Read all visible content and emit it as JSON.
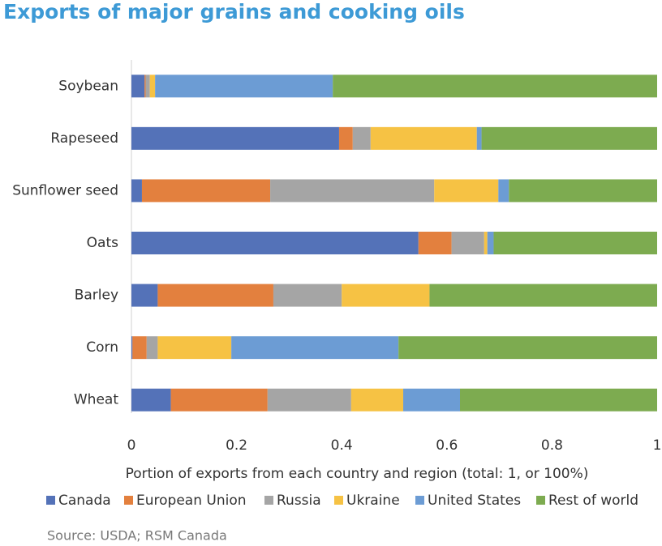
{
  "chart_data": {
    "type": "stacked-bar-horizontal",
    "title": "Exports of major grains and cooking oils",
    "x_label": "Portion of exports from each country and region (total: 1, or 100%)",
    "source": "Source: USDA; RSM Canada",
    "categories": [
      "Soybean",
      "Rapeseed",
      "Sunflower seed",
      "Oats",
      "Barley",
      "Corn",
      "Wheat"
    ],
    "series": [
      {
        "name": "Canada",
        "color": "#5472b8",
        "values": [
          0.025,
          0.395,
          0.02,
          0.546,
          0.05,
          0.002,
          0.075
        ]
      },
      {
        "name": "European Union",
        "color": "#e3803e",
        "values": [
          0.002,
          0.026,
          0.244,
          0.063,
          0.22,
          0.027,
          0.184
        ]
      },
      {
        "name": "Russia",
        "color": "#a5a5a5",
        "values": [
          0.008,
          0.034,
          0.312,
          0.062,
          0.13,
          0.021,
          0.159
        ]
      },
      {
        "name": "Ukraine",
        "color": "#f6c244",
        "values": [
          0.01,
          0.202,
          0.122,
          0.006,
          0.167,
          0.14,
          0.099
        ]
      },
      {
        "name": "United States",
        "color": "#6c9cd4",
        "values": [
          0.338,
          0.009,
          0.02,
          0.012,
          0,
          0.318,
          0.108
        ]
      },
      {
        "name": "Rest of world",
        "color": "#7dab50",
        "values": [
          0.617,
          0.334,
          0.282,
          0.311,
          0.433,
          0.492,
          0.375
        ]
      }
    ],
    "xlim": [
      0,
      1
    ],
    "xticks": [
      0,
      0.2,
      0.4,
      0.6,
      0.8,
      1
    ],
    "grid": false,
    "legend": "bottom"
  }
}
